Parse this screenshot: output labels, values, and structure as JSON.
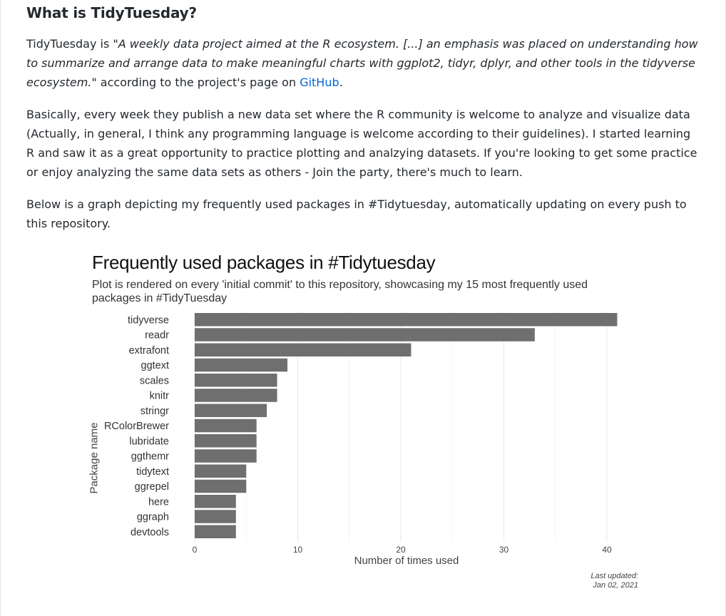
{
  "heading": "What is TidyTuesday?",
  "intro": {
    "prefix": "TidyTuesday is \"",
    "quote": "A weekly data project aimed at the R ecosystem. [...] an emphasis was placed on understanding how to summarize and arrange data to make meaningful charts with ggplot2, tidyr, dplyr, and other tools in the tidyverse ecosystem.",
    "suffix": "\" according to the project's page on ",
    "link_text": "GitHub",
    "end": "."
  },
  "paragraph2": "Basically, every week they publish a new data set where the R community is welcome to analyze and visualize data (Actually, in general, I think any programming language is welcome according to their guidelines). I started learning R and saw it as a great opportunity to practice plotting and analzying datasets. If you're looking to get some practice or enjoy analyzing the same data sets as others - Join the party, there's much to learn.",
  "paragraph3": "Below is a graph depicting my frequently used packages in #Tidytuesday, automatically updating on every push to this repository.",
  "colors": {
    "bar": "#6f6f6f",
    "grid": "#ebebeb",
    "link": "#0366d6"
  },
  "chart_data": {
    "type": "bar",
    "orientation": "horizontal",
    "title": "Frequently used packages in #Tidytuesday",
    "subtitle": "Plot is rendered on every 'initial commit' to this repository, showcasing my 15 most frequently used packages in #TidyTuesday",
    "xlabel": "Number of times used",
    "ylabel": "Package name",
    "caption_line1": "Last updated:",
    "caption_line2": "Jan 02, 2021",
    "categories": [
      "tidyverse",
      "readr",
      "extrafont",
      "ggtext",
      "scales",
      "knitr",
      "stringr",
      "RColorBrewer",
      "lubridate",
      "ggthemr",
      "tidytext",
      "ggrepel",
      "here",
      "ggraph",
      "devtools"
    ],
    "values": [
      41,
      33,
      21,
      9,
      8,
      8,
      7,
      6,
      6,
      6,
      5,
      5,
      4,
      4,
      4
    ],
    "xlim": [
      0,
      41
    ],
    "xticks": [
      0,
      10,
      20,
      30,
      40
    ],
    "grid": true,
    "legend": "none"
  }
}
